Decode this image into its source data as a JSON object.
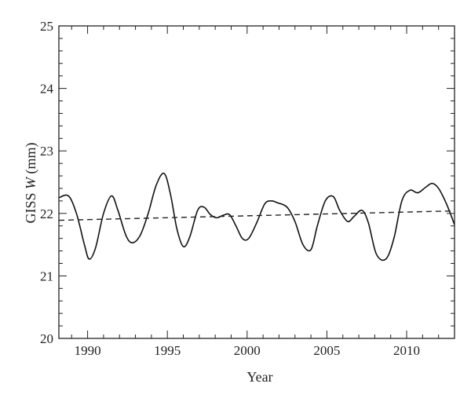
{
  "chart_data": {
    "type": "line",
    "xlabel": "Year",
    "ylabel_main": "GISS ",
    "ylabel_var": "W",
    "ylabel_unit": " (mm)",
    "xlim": [
      1988.2,
      2013
    ],
    "ylim": [
      20,
      25
    ],
    "x_ticks": [
      1990,
      1995,
      2000,
      2005,
      2010
    ],
    "y_ticks": [
      20,
      21,
      22,
      23,
      24,
      25
    ],
    "x_minor_step": 1,
    "y_minor_step": 0.2,
    "grid": false,
    "series": [
      {
        "style": "solid",
        "x": [
          1988.2,
          1988.8,
          1989.3,
          1989.8,
          1990.1,
          1990.5,
          1991.0,
          1991.5,
          1991.9,
          1992.4,
          1992.8,
          1993.3,
          1993.8,
          1994.3,
          1994.8,
          1995.2,
          1995.6,
          1996.0,
          1996.4,
          1996.9,
          1997.3,
          1997.7,
          1998.1,
          1998.5,
          1998.9,
          1999.3,
          1999.7,
          2000.1,
          2000.6,
          2001.1,
          2001.5,
          2001.9,
          2002.5,
          2003.0,
          2003.5,
          2004.0,
          2004.4,
          2004.9,
          2005.4,
          2005.8,
          2006.3,
          2006.7,
          2007.2,
          2007.6,
          2008.1,
          2008.7,
          2009.2,
          2009.7,
          2010.2,
          2010.7,
          2011.2,
          2011.6,
          2012.0,
          2012.5,
          2013.0
        ],
        "y": [
          22.25,
          22.28,
          22.0,
          21.5,
          21.27,
          21.45,
          22.0,
          22.28,
          22.05,
          21.65,
          21.53,
          21.65,
          22.0,
          22.45,
          22.64,
          22.3,
          21.75,
          21.47,
          21.62,
          22.05,
          22.1,
          21.98,
          21.93,
          21.97,
          21.98,
          21.8,
          21.6,
          21.6,
          21.85,
          22.15,
          22.2,
          22.17,
          22.1,
          21.87,
          21.5,
          21.42,
          21.8,
          22.2,
          22.27,
          22.05,
          21.87,
          21.95,
          22.05,
          21.85,
          21.35,
          21.27,
          21.6,
          22.2,
          22.37,
          22.33,
          22.42,
          22.48,
          22.4,
          22.15,
          21.82
        ]
      },
      {
        "style": "dashed",
        "x": [
          1988.2,
          2013.0
        ],
        "y": [
          21.89,
          22.04
        ]
      }
    ]
  }
}
